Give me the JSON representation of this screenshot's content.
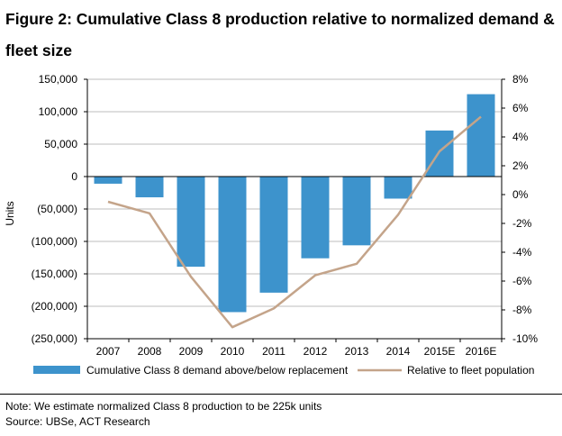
{
  "title": "Figure 2: Cumulative Class 8 production relative to normalized demand & fleet size",
  "note": "Note: We estimate normalized Class 8 production to be 225k units",
  "source": "Source: UBSe, ACT Research",
  "chart_data": {
    "type": "bar",
    "categories": [
      "2007",
      "2008",
      "2009",
      "2010",
      "2011",
      "2012",
      "2013",
      "2014",
      "2015E",
      "2016E"
    ],
    "series": [
      {
        "name": "Cumulative Class 8 demand above/below replacement",
        "type": "bar",
        "axis": "left",
        "color": "#3d93cc",
        "values": [
          -11000,
          -32000,
          -139000,
          -209000,
          -179000,
          -126000,
          -106000,
          -34000,
          71000,
          127000
        ]
      },
      {
        "name": "Relative to fleet population",
        "type": "line",
        "axis": "right",
        "color": "#c4a48a",
        "values": [
          -0.5,
          -1.3,
          -5.7,
          -9.2,
          -7.9,
          -5.6,
          -4.8,
          -1.4,
          3.0,
          5.4
        ]
      }
    ],
    "y_left": {
      "label": "Units",
      "min": -250000,
      "max": 150000,
      "ticks": [
        150000,
        100000,
        50000,
        0,
        -50000,
        -100000,
        -150000,
        -200000,
        -250000
      ],
      "tick_labels": [
        "150,000",
        "100,000",
        "50,000",
        "0",
        "(50,000)",
        "(100,000)",
        "(150,000)",
        "(200,000)",
        "(250,000)"
      ]
    },
    "y_right": {
      "min": -10,
      "max": 8,
      "tick_labels": [
        "8%",
        "6%",
        "4%",
        "2%",
        "0%",
        "-2%",
        "-4%",
        "-6%",
        "-8%",
        "-10%"
      ]
    },
    "grid": true,
    "legend_position": "bottom"
  }
}
